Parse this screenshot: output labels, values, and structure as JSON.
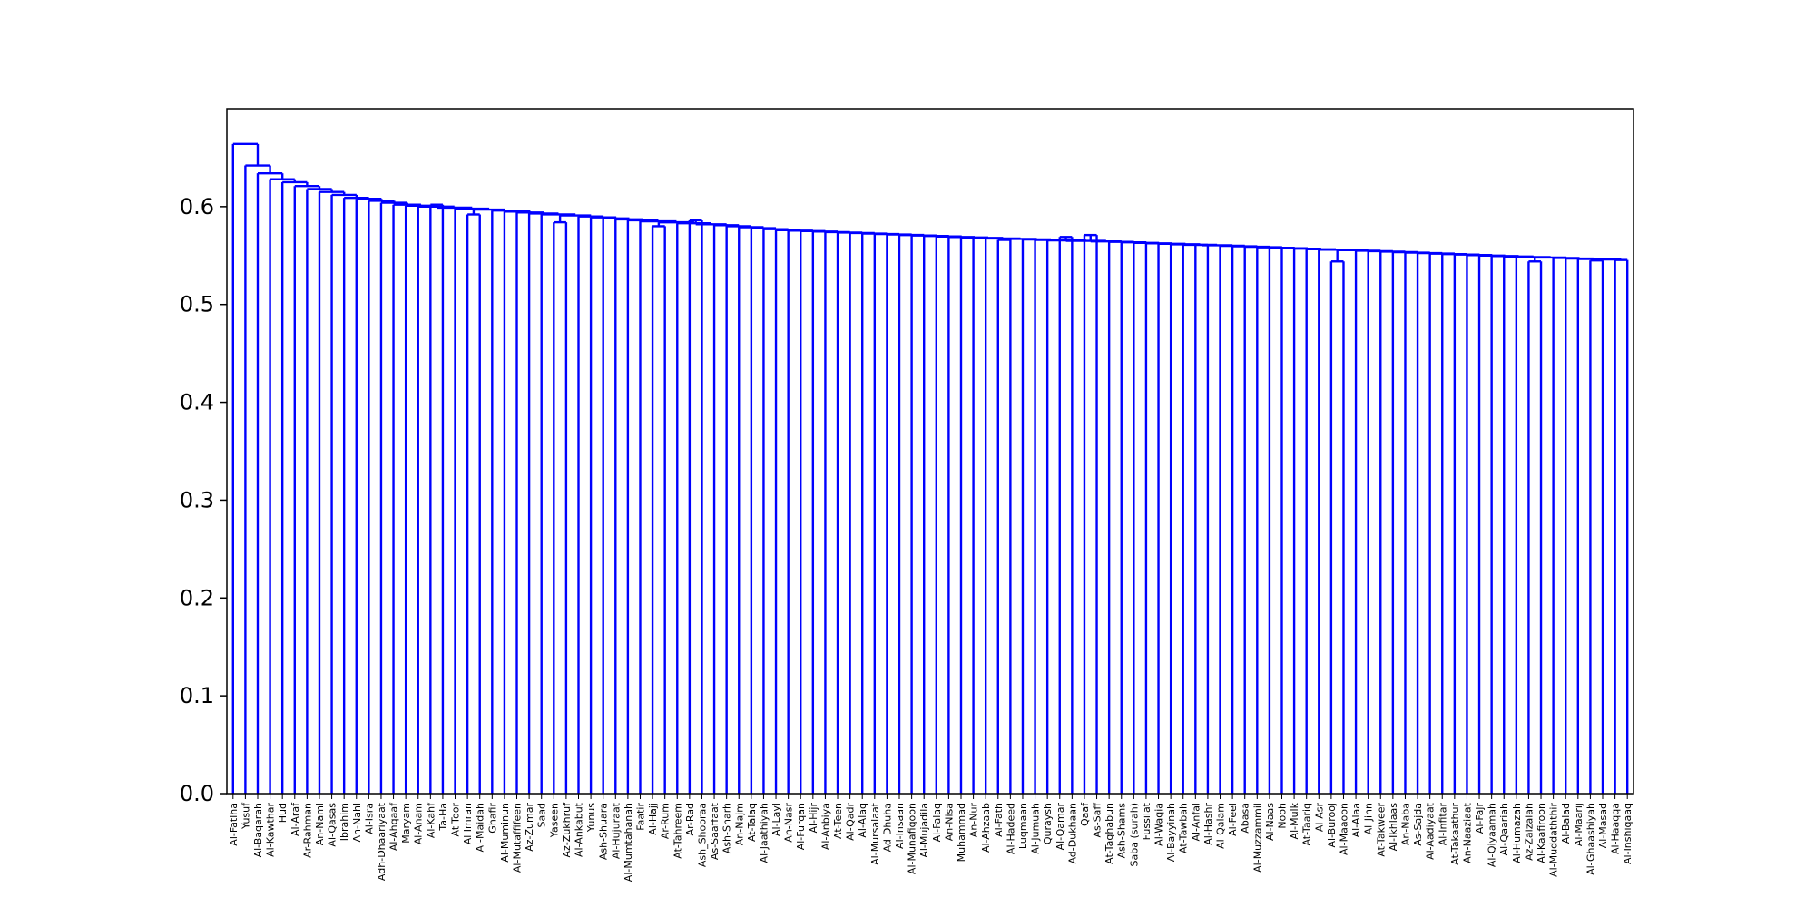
{
  "chart_data": {
    "type": "dendrogram",
    "title": "",
    "xlabel": "",
    "ylabel": "",
    "ylim": [
      0,
      0.7
    ],
    "yticks": [
      "0.0",
      "0.1",
      "0.2",
      "0.3",
      "0.4",
      "0.5",
      "0.6"
    ],
    "link_color": "#0000ff",
    "grid": false,
    "leaves": [
      "Al-Fatiha",
      "Yusuf",
      "Al-Baqarah",
      "Al-Kawthar",
      "Hud",
      "Al-Araf",
      "Ar-Rahman",
      "An-Naml",
      "Al-Qasas",
      "Ibrahim",
      "An-Nahl",
      "Al-Isra",
      "Adh-Dhaariyaat",
      "Al-Ahqaaf",
      "Maryam",
      "Al-Anam",
      "Al-Kahf",
      "Ta-Ha",
      "At-Toor",
      "Al Imran",
      "Al-Maidah",
      "Ghafir",
      "Al-Muminun",
      "Al-Mutaffifeen",
      "Az-Zumar",
      "Saad",
      "Yaseen",
      "Az-Zukhruf",
      "Al-Ankabut",
      "Yunus",
      "Ash-Shuara",
      "Al-Hujuraat",
      "Al-Mumtahanah",
      "Faatir",
      "Al-Hajj",
      "Ar-Rum",
      "At-Tahreem",
      "Ar-Rad",
      "Ash_Shooraa",
      "As-Saaffaat",
      "Ash-Sharh",
      "An-Najm",
      "At-Talaq",
      "Al-Jaathiyah",
      "Al-Layl",
      "An-Nasr",
      "Al-Furqan",
      "Al-Hijr",
      "Al-Anbiya",
      "At-Teen",
      "Al-Qadr",
      "Al-Alaq",
      "Al-Mursalaat",
      "Ad-Dhuha",
      "Al-Insaan",
      "Al-Munafiqoon",
      "Al-Mujadila",
      "Al-Falaq",
      "An-Nisa",
      "Muhammad",
      "An-Nur",
      "Al-Ahzaab",
      "Al-Fath",
      "Al-Hadeed",
      "Luqmaan",
      "Al-Jumuah",
      "Quraysh",
      "Al-Qamar",
      "Ad-Dukhaan",
      "Qaaf",
      "As-Saff",
      "At-Taghabun",
      "Ash-Shams",
      "Saba (surah)",
      "Fussilat",
      "Al-Waqia",
      "Al-Bayyinah",
      "At-Tawbah",
      "Al-Anfal",
      "Al-Hashr",
      "Al-Qalam",
      "Al-Feel",
      "Abasa",
      "Al-Muzzammil",
      "Al-Naas",
      "Nooh",
      "Al-Mulk",
      "At-Taariq",
      "Al-Asr",
      "Al-Burooj",
      "Al-Maaoon",
      "Al-Alaa",
      "Al-Jinn",
      "At-Takweer",
      "Al-Ikhlaas",
      "An-Naba",
      "As-Sajda",
      "Al-Aadiyaat",
      "Al-Infitar",
      "At-Takaathur",
      "An-Naaziaat",
      "Al-Fajr",
      "Al-Qiyaamah",
      "Al-Qaariah",
      "Al-Humazah",
      "Az-Zalzalah",
      "Al-Kaafiroon",
      "Al-Muddaththir",
      "Al-Balad",
      "Al-Maarij",
      "Al-Ghaashiyah",
      "Al-Masad",
      "Al-Haaqqa",
      "Al-Inshiqaaq"
    ],
    "chain_heights": [
      0.664,
      0.642,
      0.634,
      0.628,
      0.625,
      0.621,
      0.618,
      0.615,
      0.612,
      0.609,
      0.608,
      0.606,
      0.604,
      0.602,
      0.601,
      0.6,
      0.599,
      0.598,
      0.597,
      0.596,
      0.595,
      0.594,
      0.593,
      0.592,
      0.591,
      0.59,
      0.589,
      0.588,
      0.587,
      0.586,
      0.585,
      0.584,
      0.583,
      0.582,
      0.581,
      0.58,
      0.579,
      0.578,
      0.577,
      0.576,
      0.5755,
      0.575,
      0.5745,
      0.574,
      0.5735,
      0.573,
      0.5725,
      0.572,
      0.5715,
      0.571,
      0.5705,
      0.57,
      0.5695,
      0.569,
      0.5685,
      0.568,
      0.5675,
      0.567,
      0.5665,
      0.566,
      0.5655,
      0.565,
      0.5645,
      0.564,
      0.5635,
      0.563,
      0.5625,
      0.562,
      0.5615,
      0.561,
      0.5605,
      0.56,
      0.5595,
      0.559,
      0.5585,
      0.558,
      0.5575,
      0.557,
      0.5565,
      0.556,
      0.5555,
      0.555,
      0.5545,
      0.554,
      0.5535,
      0.553,
      0.5525,
      0.552,
      0.5515,
      0.551,
      0.5505,
      0.55,
      0.5495,
      0.549,
      0.5485,
      0.548,
      0.5475,
      0.547,
      0.5465,
      0.546,
      0.5455,
      0.545,
      0.5445,
      0.544,
      0.5435,
      0.543,
      0.5425,
      0.542,
      0.5415,
      0.541,
      0.5405,
      0.54,
      0.5395
    ],
    "pairs": [
      {
        "leaves": [
          16,
          17
        ],
        "height": 0.602
      },
      {
        "leaves": [
          19,
          20
        ],
        "height": 0.592
      },
      {
        "leaves": [
          26,
          27
        ],
        "height": 0.584
      },
      {
        "leaves": [
          34,
          35
        ],
        "height": 0.58
      },
      {
        "leaves": [
          37,
          38
        ],
        "height": 0.586
      },
      {
        "leaves": [
          62,
          63
        ],
        "height": 0.566
      },
      {
        "leaves": [
          67,
          68
        ],
        "height": 0.569
      },
      {
        "leaves": [
          69,
          70
        ],
        "height": 0.571
      },
      {
        "leaves": [
          78,
          79
        ],
        "height": 0.561
      },
      {
        "leaves": [
          89,
          90
        ],
        "height": 0.544
      },
      {
        "leaves": [
          105,
          106
        ],
        "height": 0.544
      },
      {
        "leaves": [
          110,
          111
        ],
        "height": 0.545
      }
    ]
  }
}
